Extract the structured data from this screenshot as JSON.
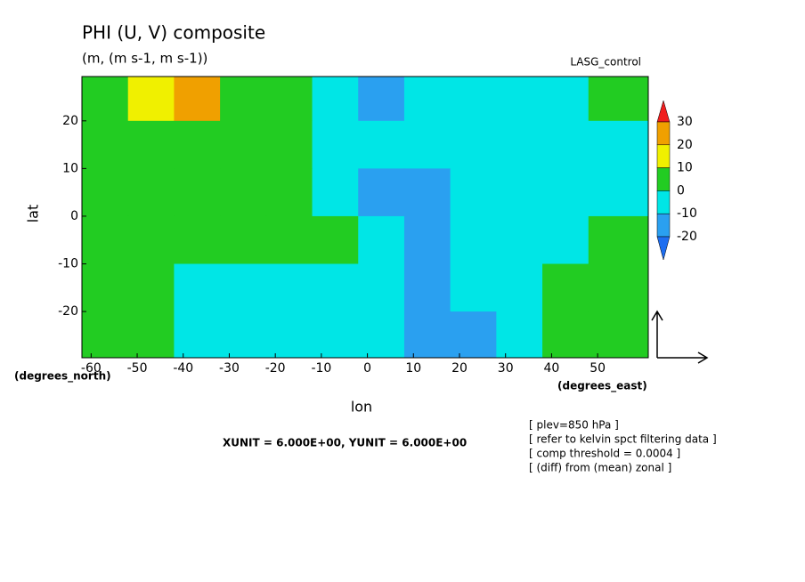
{
  "chart_data": {
    "type": "contour",
    "title": "PHI (U, V) composite",
    "subtitle": "(m, (m s-1, m s-1))",
    "annotation": "LASG_control",
    "y_label": "lat",
    "x_label": "lon",
    "y_unit": "(degrees_north)",
    "x_unit": "(degrees_east)",
    "vector_units": "XUNIT = 6.000E+00, YUNIT = 6.000E+00",
    "notes": [
      "[ plev=850 hPa ]",
      "[ refer to kelvin spct filtering data ]",
      "[ comp threshold = 0.0004 ]",
      "[ (diff) from (mean) zonal ]"
    ],
    "xlim": [
      -62,
      61
    ],
    "ylim": [
      -29.7,
      29.3
    ],
    "xticks": [
      -60,
      -50,
      -40,
      -30,
      -20,
      -10,
      0,
      10,
      20,
      30,
      40,
      50
    ],
    "yticks": [
      20,
      10,
      0,
      -10,
      -20
    ],
    "x": [
      -57,
      -47,
      -37,
      -27,
      -17,
      -7,
      3,
      13,
      23,
      33,
      43,
      53
    ],
    "y": [
      25,
      15,
      5,
      -5,
      -15,
      -25
    ],
    "z": [
      [
        5,
        15,
        25,
        5,
        3,
        -5,
        -12,
        -8,
        -5,
        -5,
        -3,
        5
      ],
      [
        3,
        5,
        8,
        5,
        2,
        -5,
        -7,
        -5,
        -5,
        -5,
        -3,
        -3
      ],
      [
        3,
        3,
        3,
        3,
        3,
        -2,
        -12,
        -15,
        -8,
        -5,
        -5,
        -5
      ],
      [
        3,
        3,
        3,
        3,
        3,
        2,
        -5,
        -12,
        -8,
        -5,
        -5,
        5
      ],
      [
        3,
        3,
        -3,
        -5,
        -5,
        -5,
        -8,
        -12,
        -10,
        -5,
        5,
        5
      ],
      [
        3,
        3,
        -3,
        -5,
        -5,
        -8,
        -5,
        -15,
        -15,
        -8,
        5,
        3
      ]
    ],
    "levels": [
      30,
      20,
      10,
      0,
      -10,
      -20
    ],
    "colors": [
      "#f01e1e",
      "#f0a000",
      "#f0f000",
      "#22cc22",
      "#00e6e6",
      "#2aa0f0",
      "#1e6ef0"
    ]
  }
}
